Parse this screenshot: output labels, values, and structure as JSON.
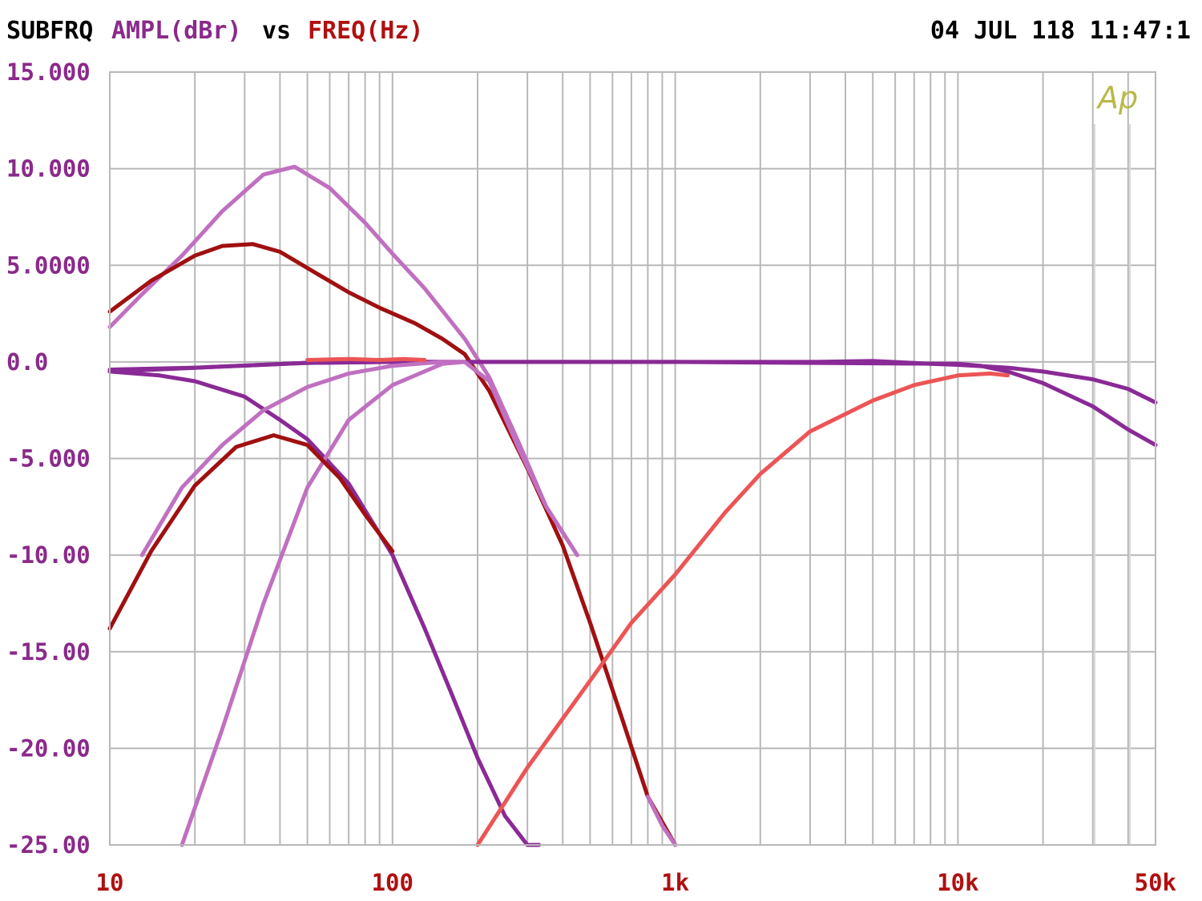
{
  "header": {
    "name": "SUBFRQ",
    "yquantity": "AMPL(dBr)",
    "vs": "vs",
    "xquantity": "FREQ(Hz)",
    "timestamp": "04 JUL 118 11:47:1"
  },
  "logo": "Ap",
  "colors": {
    "name_text": "#000000",
    "y_axis_text": "#8a2a8a",
    "x_axis_text": "#b01010",
    "grid": "#b8b8b8",
    "logo": "#b9b94a",
    "dark_red": "#a01010",
    "light_purple": "#c070c0",
    "purple": "#8a2a96",
    "coral": "#ec5555"
  },
  "chart_data": {
    "type": "line",
    "xscale": "log",
    "xlim": [
      10,
      50000
    ],
    "ylim": [
      -25,
      15
    ],
    "grid": true,
    "xlabel": "FREQ(Hz)",
    "ylabel": "AMPL(dBr)",
    "ytick_labels": [
      "15.000",
      "10.000",
      "5.0000",
      "0.0",
      "-5.000",
      "-10.00",
      "-15.00",
      "-20.00",
      "-25.00"
    ],
    "ytick_values": [
      15,
      10,
      5,
      0,
      -5,
      -10,
      -15,
      -20,
      -25
    ],
    "xtick_labels": [
      "10",
      "100",
      "1k",
      "10k",
      "50k"
    ],
    "xtick_values": [
      10,
      100,
      1000,
      10000,
      50000
    ],
    "series": [
      {
        "color": "light_purple",
        "x": [
          10,
          13,
          18,
          25,
          35,
          45,
          60,
          80,
          100,
          130,
          180,
          220,
          280,
          350,
          450
        ],
        "y": [
          1.8,
          3.5,
          5.5,
          7.8,
          9.7,
          10.1,
          9.0,
          7.2,
          5.6,
          3.8,
          1.2,
          -0.8,
          -4.2,
          -7.5,
          -10.0
        ]
      },
      {
        "color": "dark_red",
        "x": [
          10,
          14,
          20,
          25,
          32,
          40,
          55,
          70,
          90,
          120,
          150,
          180,
          220,
          300,
          400,
          500,
          650,
          800,
          1000
        ],
        "y": [
          2.6,
          4.2,
          5.5,
          6.0,
          6.1,
          5.7,
          4.5,
          3.6,
          2.8,
          2.0,
          1.2,
          0.4,
          -1.5,
          -5.5,
          -9.5,
          -13.5,
          -18.5,
          -22.5,
          -25.0
        ]
      },
      {
        "color": "purple",
        "x": [
          10,
          20,
          50,
          100,
          200,
          500,
          1000,
          3000,
          5000,
          8000,
          10000,
          15000,
          20000,
          30000,
          40000,
          50000
        ],
        "y": [
          -0.4,
          -0.3,
          -0.05,
          0,
          0,
          0,
          0,
          0,
          0.05,
          -0.1,
          -0.15,
          -0.3,
          -0.5,
          -0.9,
          -1.4,
          -2.1
        ]
      },
      {
        "color": "purple",
        "x": [
          10,
          15,
          20,
          30,
          40,
          50,
          70,
          100,
          130,
          160,
          200,
          250,
          300,
          330
        ],
        "y": [
          -0.5,
          -0.7,
          -1.0,
          -1.8,
          -3.0,
          -4.0,
          -6.3,
          -10.0,
          -13.8,
          -17.0,
          -20.5,
          -23.5,
          -25.0,
          -25.0
        ]
      },
      {
        "color": "purple",
        "x": [
          10,
          50,
          100,
          1000,
          10000,
          12000,
          15000,
          20000,
          30000,
          40000,
          50000
        ],
        "y": [
          -0.5,
          -0.05,
          0,
          0,
          -0.1,
          -0.2,
          -0.5,
          -1.1,
          -2.3,
          -3.5,
          -4.3
        ]
      },
      {
        "color": "light_purple",
        "x": [
          13,
          18,
          25,
          35,
          50,
          70,
          100,
          150,
          180
        ],
        "y": [
          -10.0,
          -6.5,
          -4.3,
          -2.5,
          -1.3,
          -0.6,
          -0.2,
          0,
          0
        ]
      },
      {
        "color": "light_purple",
        "x": [
          18,
          25,
          35,
          50,
          70,
          100,
          150,
          180,
          220,
          280,
          350,
          450
        ],
        "y": [
          -25.0,
          -19.0,
          -12.5,
          -6.5,
          -3.0,
          -1.2,
          -0.1,
          0,
          -1.0,
          -4.5,
          -7.5,
          -10.0
        ]
      },
      {
        "color": "dark_red",
        "x": [
          10,
          14,
          20,
          28,
          38,
          50,
          65,
          80,
          100
        ],
        "y": [
          -13.8,
          -9.8,
          -6.4,
          -4.4,
          -3.8,
          -4.3,
          -6.0,
          -7.9,
          -9.8
        ]
      },
      {
        "color": "light_purple",
        "x": [
          800,
          900,
          1000
        ],
        "y": [
          -22.5,
          -24.0,
          -25.0
        ]
      },
      {
        "color": "coral",
        "x": [
          200,
          300,
          500,
          700,
          1000,
          1500,
          2000,
          3000,
          5000,
          7000,
          10000,
          13000,
          15000
        ],
        "y": [
          -25.0,
          -21.0,
          -16.5,
          -13.5,
          -11.0,
          -7.8,
          -5.8,
          -3.6,
          -2.0,
          -1.2,
          -0.7,
          -0.6,
          -0.7
        ]
      },
      {
        "color": "coral",
        "x": [
          50,
          70,
          90,
          110,
          130
        ],
        "y": [
          0.1,
          0.15,
          0.1,
          0.15,
          0.1
        ]
      }
    ]
  }
}
